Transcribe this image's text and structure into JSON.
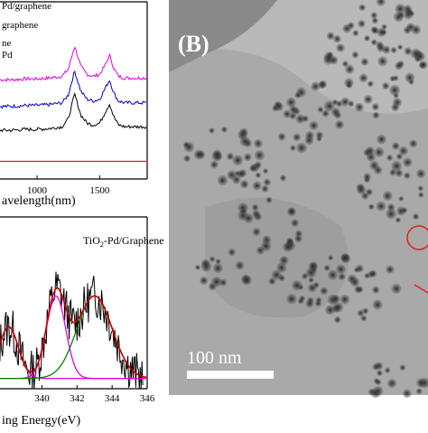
{
  "raman": {
    "legend": [
      "Pd/graphene",
      "graphene",
      "ne",
      "Pd"
    ],
    "x_tick_labels": [
      "1000",
      "1500"
    ],
    "xlabel": "avelength(nm)"
  },
  "xps": {
    "title": "TiO2-Pd/Graphene",
    "title_main": "TiO",
    "title_sub": "2",
    "title_rest": "-Pd/Graphene",
    "x_tick_labels": [
      "340",
      "342",
      "344",
      "346"
    ],
    "xlabel": "ing Energy(eV)"
  },
  "tem": {
    "panel_label": "(B)",
    "scale_text": "100 nm"
  },
  "chart_data": [
    {
      "type": "line",
      "xlim": [
        675,
        1880
      ],
      "ylim": [
        0,
        200
      ],
      "x": [
        700,
        800,
        900,
        1000,
        1100,
        1200,
        1250,
        1300,
        1350,
        1400,
        1450,
        1500,
        1550,
        1580,
        1610,
        1650,
        1700,
        1800,
        1870
      ],
      "series": [
        {
          "name": "Pd/graphene",
          "color": "#e000e0",
          "values": [
            112,
            112,
            113,
            113,
            114,
            116,
            124,
            150,
            127,
            118,
            116,
            118,
            130,
            140,
            126,
            116,
            114,
            114,
            114
          ]
        },
        {
          "name": "graphene",
          "color": "#0000cc",
          "values": [
            82,
            82,
            83,
            83,
            84,
            86,
            95,
            122,
            99,
            90,
            88,
            90,
            104,
            112,
            98,
            88,
            86,
            86,
            86
          ]
        },
        {
          "name": "ne",
          "color": "#000000",
          "values": [
            55,
            55,
            56,
            56,
            57,
            59,
            68,
            96,
            72,
            63,
            61,
            63,
            77,
            85,
            71,
            61,
            59,
            59,
            59
          ]
        },
        {
          "name": "Pd",
          "color": "#cc0000",
          "values": [
            20,
            20,
            20,
            20,
            20,
            20,
            20,
            20,
            20,
            20,
            20,
            20,
            20,
            20,
            20,
            20,
            20,
            20,
            20
          ]
        }
      ],
      "grid": false
    },
    {
      "type": "line",
      "xlim": [
        337.4,
        346
      ],
      "ylim": [
        0,
        100
      ],
      "x_ticks": [
        340,
        342,
        344,
        346
      ],
      "components": [
        {
          "color": "#e000e0",
          "center": 338.1,
          "amplitude": 30,
          "width": 0.55
        },
        {
          "color": "#e000e0",
          "center": 340.8,
          "amplitude": 48,
          "width": 0.55
        },
        {
          "color": "#008000",
          "center": 343.0,
          "amplitude": 48,
          "width": 1.0
        }
      ],
      "envelope_color": "#cc0000",
      "raw_color": "#000000",
      "grid": false
    }
  ]
}
